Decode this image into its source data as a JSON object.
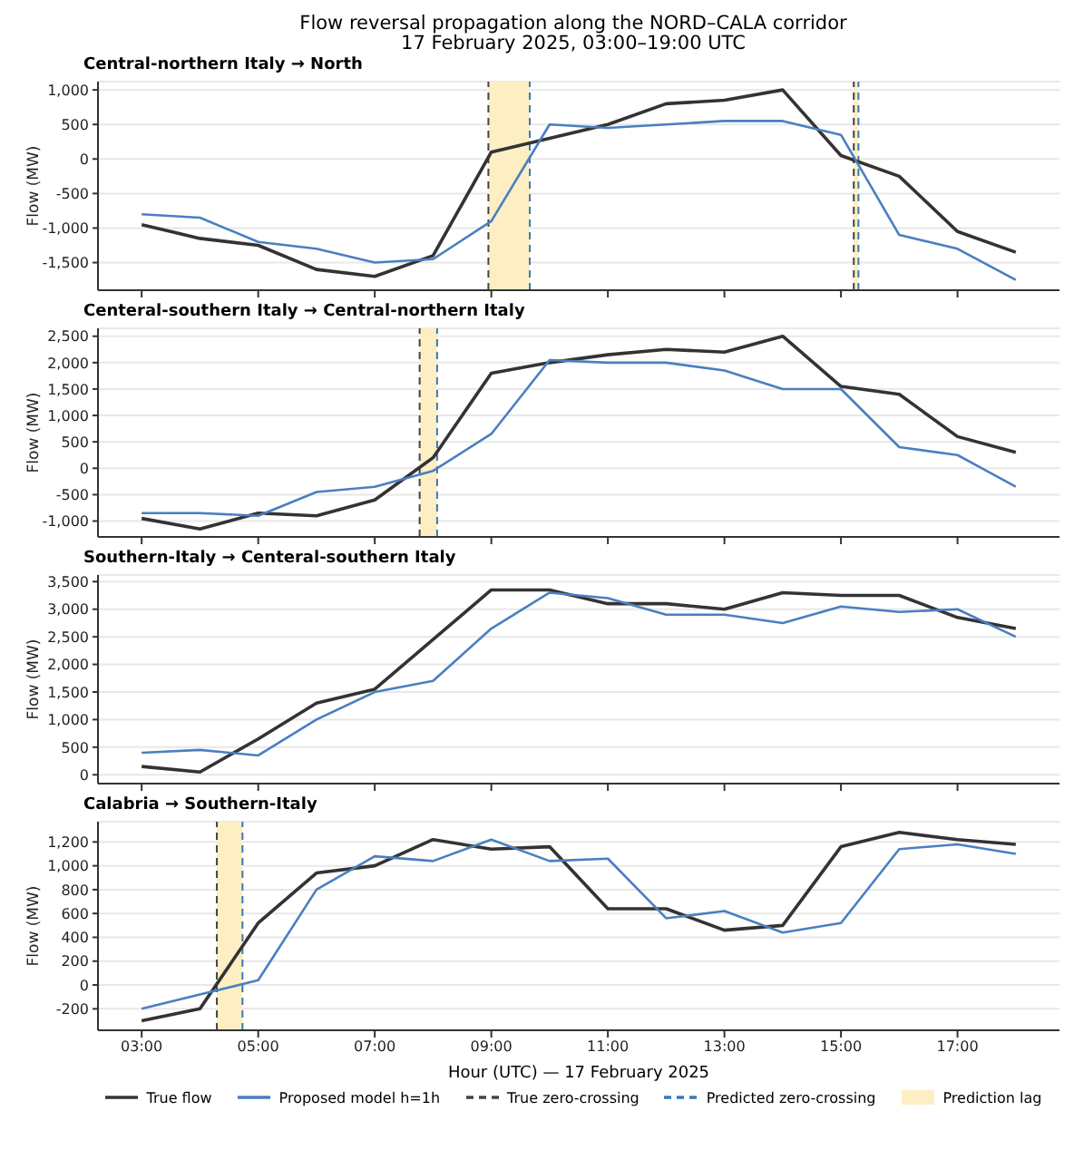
{
  "chart_data": [
    {
      "type": "line",
      "title": "Central-northern Italy → North",
      "annotations": [
        "Flow reversal propagation along the NORD–CALA corridor",
        "17 February 2025, 03:00–19:00 UTC"
      ],
      "ylabel": "Flow (MW)",
      "x": [
        3,
        4,
        5,
        6,
        7,
        8,
        9,
        10,
        11,
        12,
        13,
        14,
        15,
        16,
        17,
        18
      ],
      "xlim": [
        2.25,
        18.75
      ],
      "xticks": [
        {
          "value": 3,
          "label": null
        },
        {
          "value": 5,
          "label": null
        },
        {
          "value": 7,
          "label": null
        },
        {
          "value": 9,
          "label": null
        },
        {
          "value": 11,
          "label": null
        },
        {
          "value": 13,
          "label": null
        },
        {
          "value": 15,
          "label": null
        },
        {
          "value": 17,
          "label": null
        }
      ],
      "ylim": [
        -1900,
        1120
      ],
      "yticks": [
        {
          "value": -1500,
          "label": "-1,500"
        },
        {
          "value": -1000,
          "label": "-1,000"
        },
        -500,
        0,
        500,
        {
          "value": 1000,
          "label": "1,000"
        }
      ],
      "tick_labels": "y",
      "grid": "y",
      "series": [
        {
          "color": "#333333",
          "values": [
            -950,
            -1150,
            -1250,
            -1600,
            -1700,
            -1400,
            100,
            300,
            500,
            800,
            850,
            1000,
            50,
            -250,
            -1050,
            -1350
          ]
        },
        {
          "color": "#4a7fc1",
          "values": [
            -800,
            -850,
            -1200,
            -1300,
            -1500,
            -1450,
            -900,
            500,
            450,
            500,
            550,
            550,
            350,
            -1100,
            -1300,
            -1750
          ]
        }
      ],
      "ref_lines": [
        {
          "axis": "x",
          "value": 8.95,
          "color": "#444444",
          "line_style": "dashed"
        },
        {
          "axis": "x",
          "value": 9.66,
          "color": "#3a78b5",
          "line_style": "dashed"
        },
        {
          "axis": "x",
          "value": 15.22,
          "color": "#444444",
          "line_style": "dashed"
        },
        {
          "axis": "x",
          "value": 15.3,
          "color": "#3a78b5",
          "line_style": "dashed"
        }
      ],
      "bands": [
        {
          "axis": "x",
          "from": 8.95,
          "to": 9.66,
          "color": "#fdeec4"
        },
        {
          "axis": "x",
          "from": 15.22,
          "to": 15.3,
          "color": "#fdeec4"
        }
      ]
    },
    {
      "type": "line",
      "title": "Centeral-southern Italy → Central-northern Italy",
      "ylabel": "Flow (MW)",
      "x": [
        3,
        4,
        5,
        6,
        7,
        8,
        9,
        10,
        11,
        12,
        13,
        14,
        15,
        16,
        17,
        18
      ],
      "xlim": [
        2.25,
        18.75
      ],
      "xticks": [
        {
          "value": 3,
          "label": null
        },
        {
          "value": 5,
          "label": null
        },
        {
          "value": 7,
          "label": null
        },
        {
          "value": 9,
          "label": null
        },
        {
          "value": 11,
          "label": null
        },
        {
          "value": 13,
          "label": null
        },
        {
          "value": 15,
          "label": null
        },
        {
          "value": 17,
          "label": null
        }
      ],
      "ylim": [
        -1300,
        2650
      ],
      "yticks": [
        {
          "value": -1000,
          "label": "-1,000"
        },
        -500,
        0,
        500,
        {
          "value": 1000,
          "label": "1,000"
        },
        {
          "value": 1500,
          "label": "1,500"
        },
        {
          "value": 2000,
          "label": "2,000"
        },
        {
          "value": 2500,
          "label": "2,500"
        }
      ],
      "tick_labels": "y",
      "grid": "y",
      "series": [
        {
          "color": "#333333",
          "values": [
            -950,
            -1150,
            -850,
            -900,
            -600,
            200,
            1800,
            2000,
            2150,
            2250,
            2200,
            2500,
            1550,
            1400,
            600,
            300
          ]
        },
        {
          "color": "#4a7fc1",
          "values": [
            -850,
            -850,
            -900,
            -450,
            -350,
            -50,
            650,
            2050,
            2000,
            2000,
            1850,
            1500,
            1500,
            400,
            250,
            -350
          ]
        }
      ],
      "ref_lines": [
        {
          "axis": "x",
          "value": 7.77,
          "color": "#444444",
          "line_style": "dashed"
        },
        {
          "axis": "x",
          "value": 8.07,
          "color": "#3a78b5",
          "line_style": "dashed"
        }
      ],
      "bands": [
        {
          "axis": "x",
          "from": 7.77,
          "to": 8.07,
          "color": "#fdeec4"
        }
      ]
    },
    {
      "type": "line",
      "title": "Southern-Italy → Centeral-southern Italy",
      "ylabel": "Flow (MW)",
      "x": [
        3,
        4,
        5,
        6,
        7,
        8,
        9,
        10,
        11,
        12,
        13,
        14,
        15,
        16,
        17,
        18
      ],
      "xlim": [
        2.25,
        18.75
      ],
      "xticks": [
        {
          "value": 3,
          "label": null
        },
        {
          "value": 5,
          "label": null
        },
        {
          "value": 7,
          "label": null
        },
        {
          "value": 9,
          "label": null
        },
        {
          "value": 11,
          "label": null
        },
        {
          "value": 13,
          "label": null
        },
        {
          "value": 15,
          "label": null
        },
        {
          "value": 17,
          "label": null
        }
      ],
      "ylim": [
        -160,
        3620
      ],
      "yticks": [
        0,
        500,
        {
          "value": 1000,
          "label": "1,000"
        },
        {
          "value": 1500,
          "label": "1,500"
        },
        {
          "value": 2000,
          "label": "2,000"
        },
        {
          "value": 2500,
          "label": "2,500"
        },
        {
          "value": 3000,
          "label": "3,000"
        },
        {
          "value": 3500,
          "label": "3,500"
        }
      ],
      "tick_labels": "y",
      "grid": "y",
      "series": [
        {
          "color": "#333333",
          "values": [
            150,
            50,
            650,
            1300,
            1550,
            2450,
            3350,
            3350,
            3100,
            3100,
            3000,
            3300,
            3250,
            3250,
            2850,
            2650
          ]
        },
        {
          "color": "#4a7fc1",
          "values": [
            400,
            450,
            350,
            1000,
            1500,
            1700,
            2650,
            3300,
            3200,
            2900,
            2900,
            2750,
            3050,
            2950,
            3000,
            2500
          ]
        }
      ]
    },
    {
      "type": "line",
      "title": "Calabria → Southern-Italy",
      "ylabel": "Flow (MW)",
      "xlabel": "Hour (UTC) — 17 February 2025",
      "x": [
        3,
        4,
        5,
        6,
        7,
        8,
        9,
        10,
        11,
        12,
        13,
        14,
        15,
        16,
        17,
        18
      ],
      "xlim": [
        2.25,
        18.75
      ],
      "xticks": [
        {
          "value": 3,
          "label": "03:00"
        },
        {
          "value": 5,
          "label": "05:00"
        },
        {
          "value": 7,
          "label": "07:00"
        },
        {
          "value": 9,
          "label": "09:00"
        },
        {
          "value": 11,
          "label": "11:00"
        },
        {
          "value": 13,
          "label": "13:00"
        },
        {
          "value": 15,
          "label": "15:00"
        },
        {
          "value": 17,
          "label": "17:00"
        }
      ],
      "ylim": [
        -380,
        1370
      ],
      "yticks": [
        -200,
        0,
        200,
        400,
        600,
        800,
        {
          "value": 1000,
          "label": "1,000"
        },
        {
          "value": 1200,
          "label": "1,200"
        }
      ],
      "grid": "y",
      "legend": "bottom",
      "series": [
        {
          "name": "True flow",
          "color": "#333333",
          "values": [
            -300,
            -200,
            520,
            940,
            1000,
            1220,
            1140,
            1160,
            640,
            640,
            460,
            500,
            1160,
            1280,
            1220,
            1180
          ]
        },
        {
          "name": "Proposed model h=1h",
          "color": "#4a7fc1",
          "values": [
            -200,
            -80,
            40,
            800,
            1080,
            1040,
            1220,
            1040,
            1060,
            560,
            620,
            440,
            520,
            1140,
            1180,
            1100
          ]
        }
      ],
      "ref_lines": [
        {
          "axis": "x",
          "value": 4.29,
          "label": "True zero-crossing",
          "color": "#444444",
          "line_style": "dashed"
        },
        {
          "axis": "x",
          "value": 4.73,
          "label": "Predicted zero-crossing",
          "color": "#3a78b5",
          "line_style": "dashed"
        }
      ],
      "bands": [
        {
          "axis": "x",
          "from": 4.29,
          "to": 4.73,
          "label": "Prediction lag",
          "color": "#fdeec4"
        }
      ]
    }
  ]
}
